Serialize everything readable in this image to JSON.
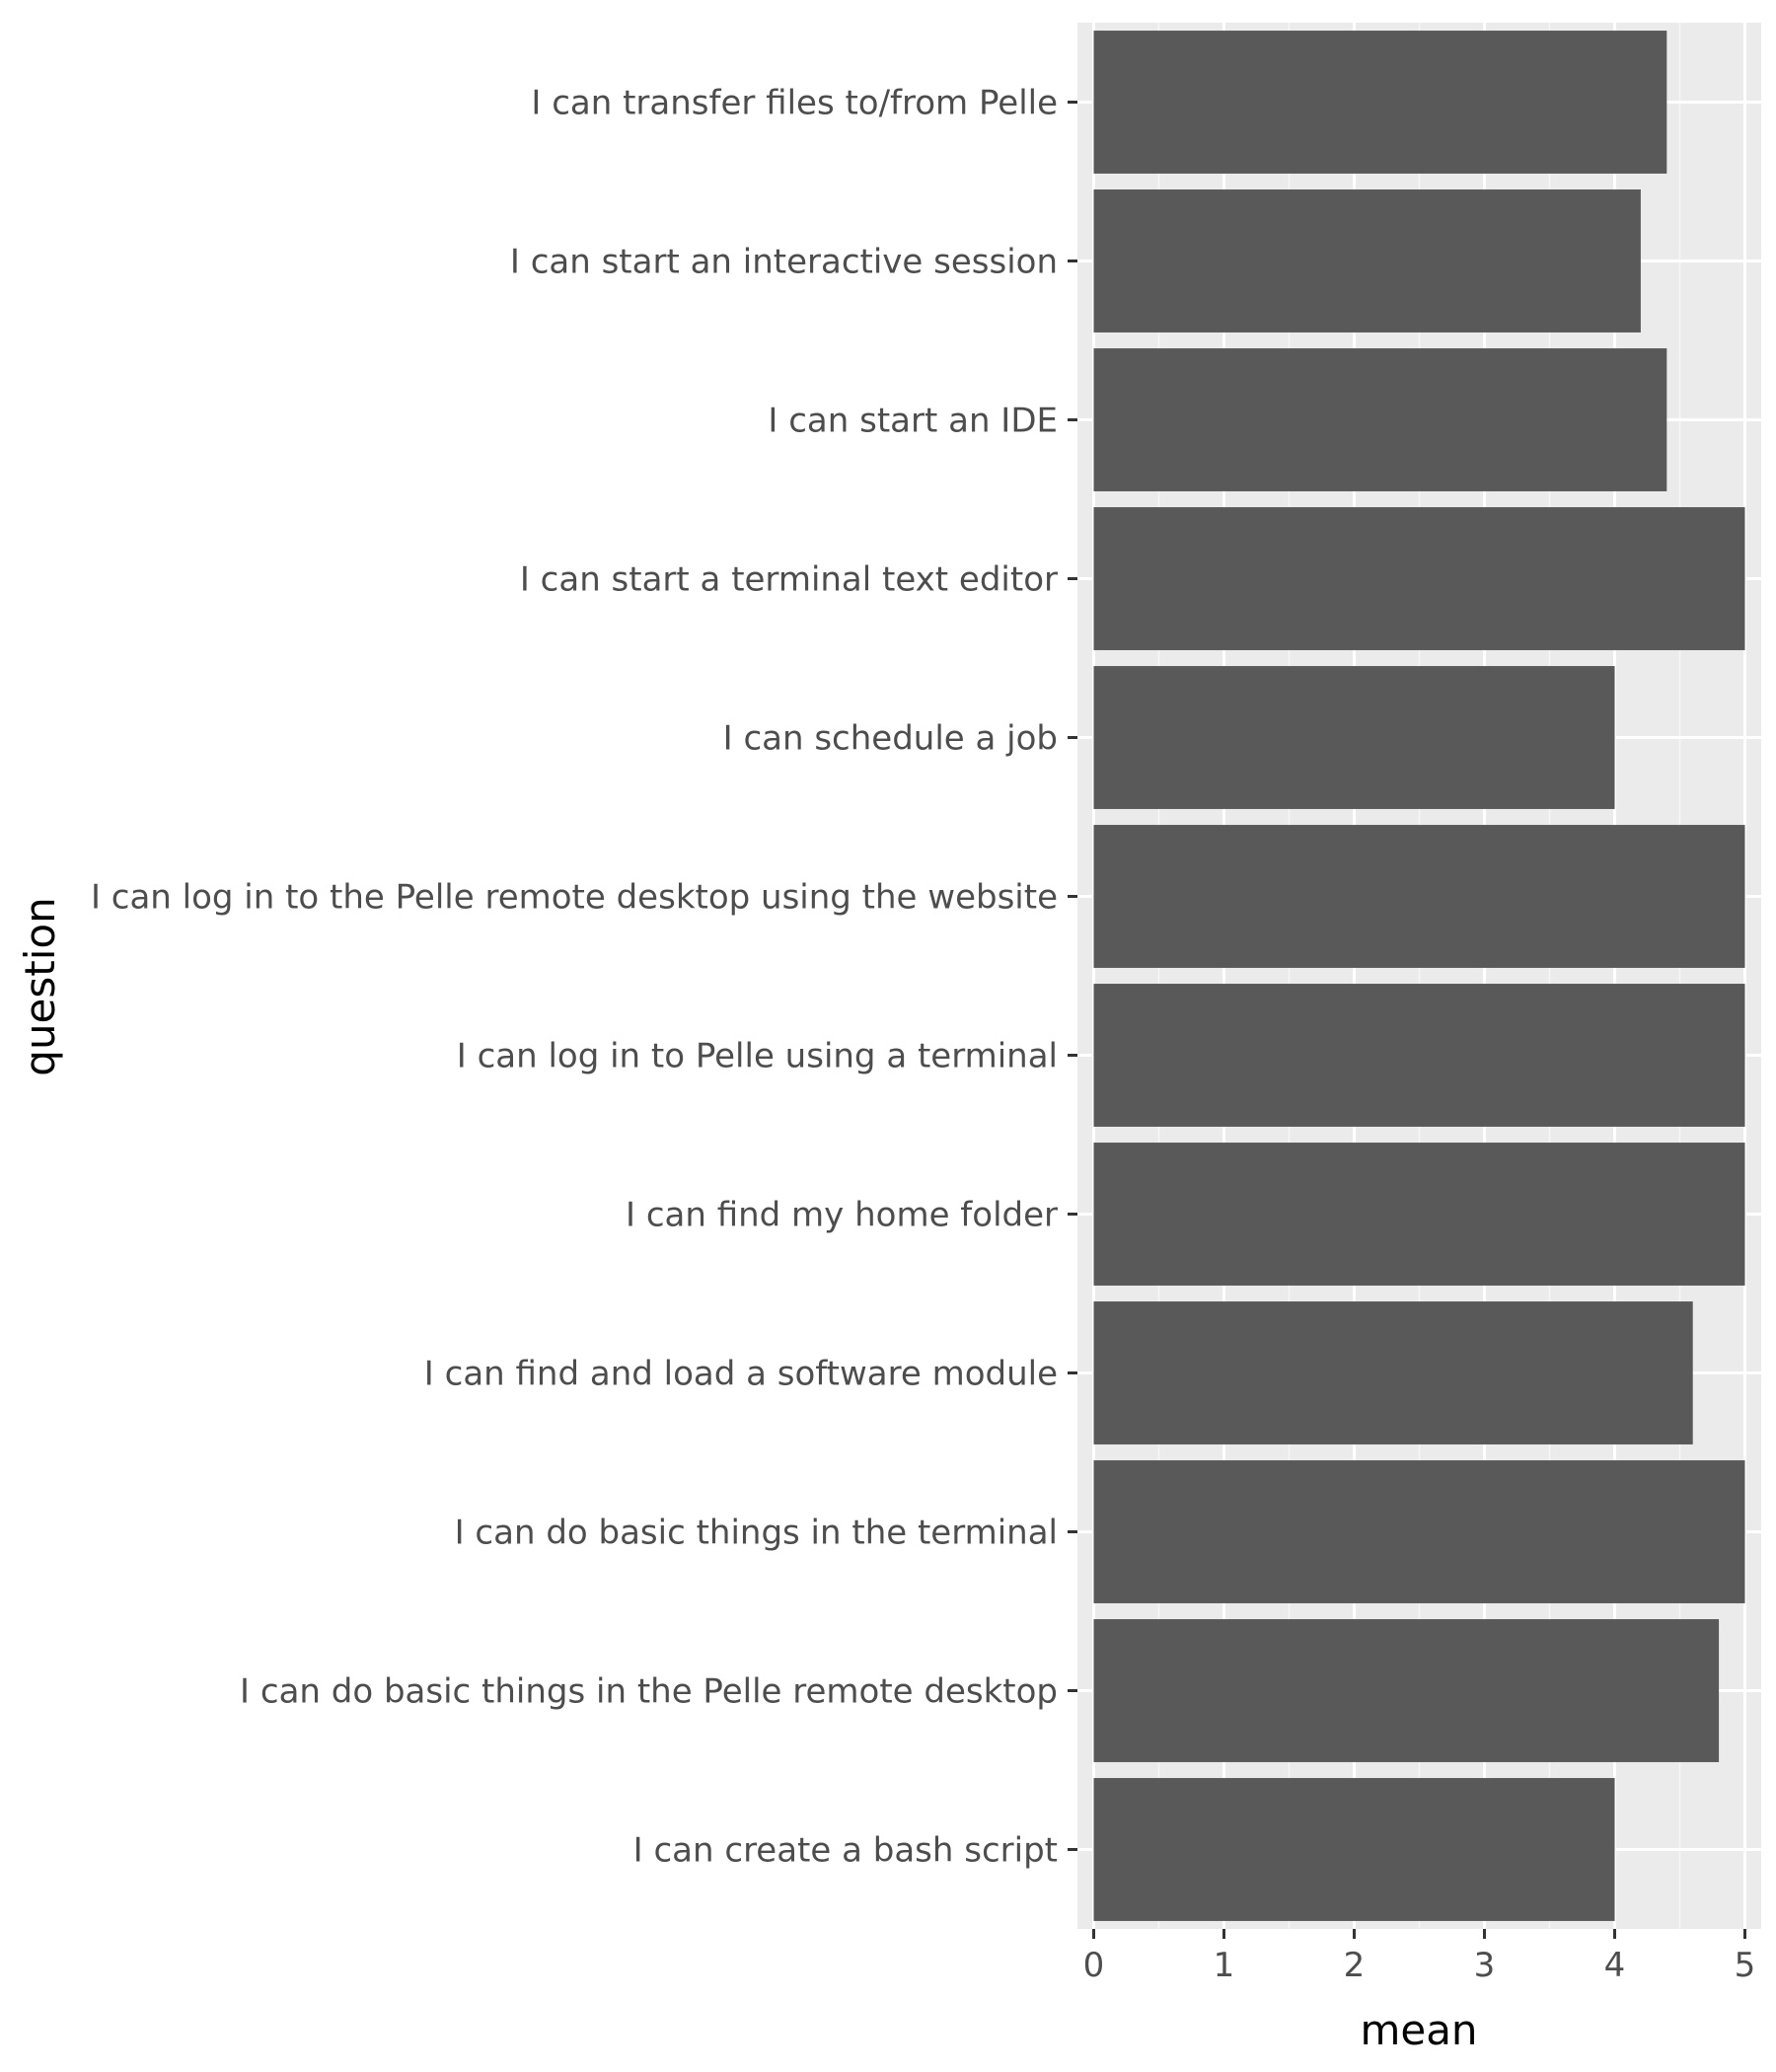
{
  "chart_data": {
    "type": "bar",
    "orientation": "horizontal",
    "xlabel": "mean",
    "ylabel": "question",
    "xlim": [
      -0.125,
      5.125
    ],
    "x_ticks": [
      0,
      1,
      2,
      3,
      4,
      5
    ],
    "categories": [
      "I can transfer files to/from Pelle",
      "I can start an interactive session",
      "I can start an IDE",
      "I can start a terminal text editor",
      "I can schedule a job",
      "I can log in to the Pelle remote desktop using the website",
      "I can log in to Pelle using a terminal",
      "I can find my home folder",
      "I can find and load a software module",
      "I can do basic things in the terminal",
      "I can do basic things in the Pelle remote desktop",
      "I can create a bash script"
    ],
    "values": [
      4.4,
      4.2,
      4.4,
      5.0,
      4.0,
      5.0,
      5.0,
      5.0,
      4.6,
      5.0,
      4.8,
      4.0
    ],
    "grid": true,
    "colors": {
      "bar": "#595959",
      "panel": "#ebebeb",
      "grid_major": "#ffffff",
      "grid_minor": "#f6f6f6",
      "tick_text": "#4d4d4d",
      "tick_mark": "#333333",
      "axis_title": "#000000"
    }
  }
}
